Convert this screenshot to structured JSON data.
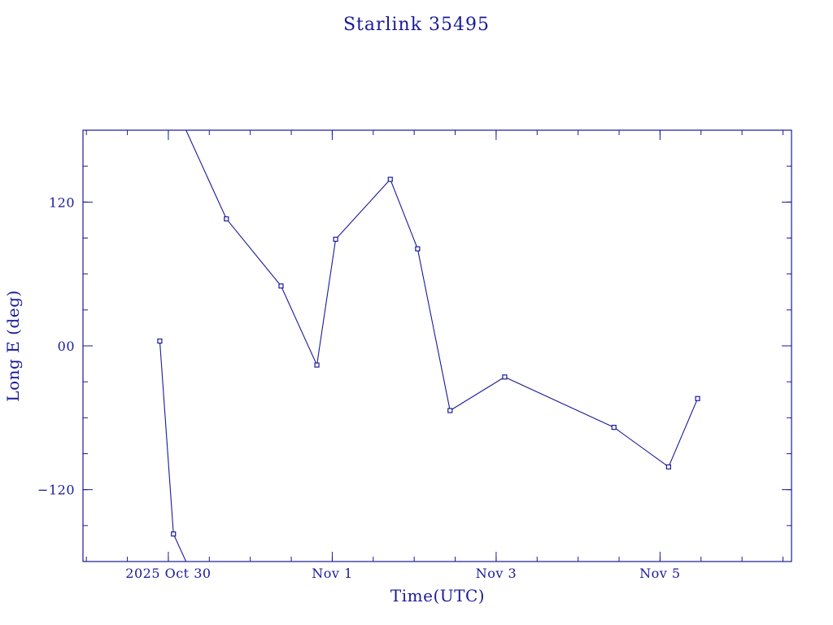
{
  "colors": {
    "ink": "#1a1a9a",
    "background": "#ffffff"
  },
  "chart_data": {
    "type": "line",
    "title": "Starlink 35495",
    "xlabel": "Time(UTC)",
    "ylabel": "Long E (deg)",
    "x_unit": "days",
    "xlim": [
      "2025-10-28T23:00",
      "2025-11-06T14:30"
    ],
    "ylim": [
      -180,
      180
    ],
    "x_ticks": [
      {
        "at": "2025-10-30T00:00",
        "label": "2025 Oct 30"
      },
      {
        "at": "2025-11-01T00:00",
        "label": "Nov  1"
      },
      {
        "at": "2025-11-03T00:00",
        "label": "Nov  3"
      },
      {
        "at": "2025-11-05T00:00",
        "label": "Nov  5"
      }
    ],
    "x_minor_step_hours": 12,
    "y_ticks": [
      {
        "value": 120,
        "label": "120"
      },
      {
        "value": 0,
        "label": "00"
      },
      {
        "value": -120,
        "label": "−120"
      }
    ],
    "y_minor_step": 30,
    "grid": false,
    "points": [
      {
        "x": "2025-10-29T21:30",
        "y": 4
      },
      {
        "x": "2025-10-30T01:30",
        "y": -157
      },
      {
        "x": "2025-10-30T17:00",
        "y": 106
      },
      {
        "x": "2025-10-31T09:00",
        "y": 50
      },
      {
        "x": "2025-10-31T19:30",
        "y": -16
      },
      {
        "x": "2025-11-01T01:00",
        "y": 89
      },
      {
        "x": "2025-11-01T17:00",
        "y": 139
      },
      {
        "x": "2025-11-02T01:00",
        "y": 81
      },
      {
        "x": "2025-11-02T10:30",
        "y": -54
      },
      {
        "x": "2025-11-03T02:30",
        "y": -26
      },
      {
        "x": "2025-11-04T10:30",
        "y": -68
      },
      {
        "x": "2025-11-05T02:30",
        "y": -101
      },
      {
        "x": "2025-11-05T11:00",
        "y": -44
      }
    ]
  }
}
